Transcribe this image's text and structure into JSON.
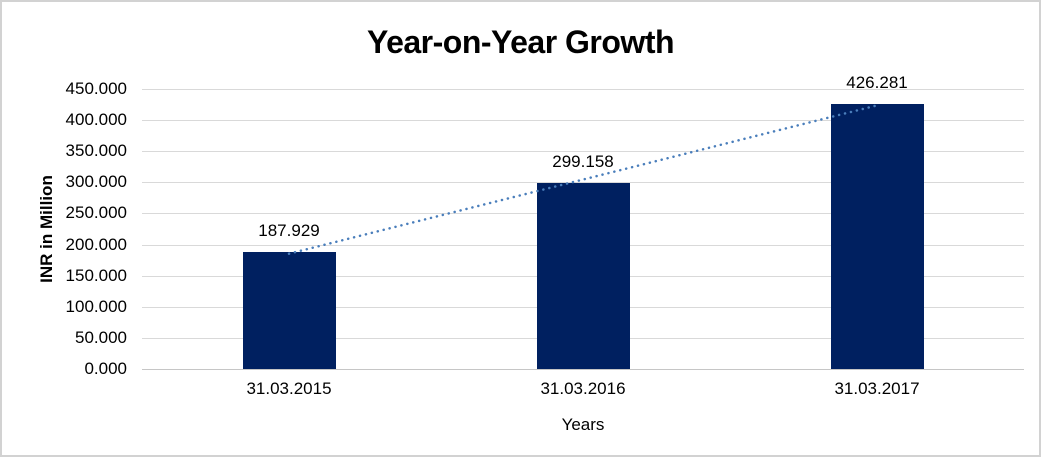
{
  "chart_data": {
    "type": "bar",
    "title": "Year-on-Year Growth",
    "xlabel": "Years",
    "ylabel": "INR in Million",
    "categories": [
      "31.03.2015",
      "31.03.2016",
      "31.03.2017"
    ],
    "values": [
      187.929,
      299.158,
      426.281
    ],
    "data_labels": [
      "187.929",
      "299.158",
      "426.281"
    ],
    "ylim": [
      0,
      450
    ],
    "ytick_step": 50,
    "ytick_labels": [
      "450.000",
      "400.000",
      "350.000",
      "300.000",
      "250.000",
      "200.000",
      "150.000",
      "100.000",
      "50.000",
      "0.000"
    ],
    "grid": true,
    "legend": "none",
    "trendline": {
      "kind": "linear",
      "style": "dotted"
    },
    "colors": {
      "bar": "#002060",
      "trendline": "#4a7ebb",
      "gridline": "#d9d9d9",
      "axis_line": "#c6c6c6",
      "text": "#000000",
      "frame_border": "#d2d2d2",
      "background": "#ffffff"
    }
  }
}
